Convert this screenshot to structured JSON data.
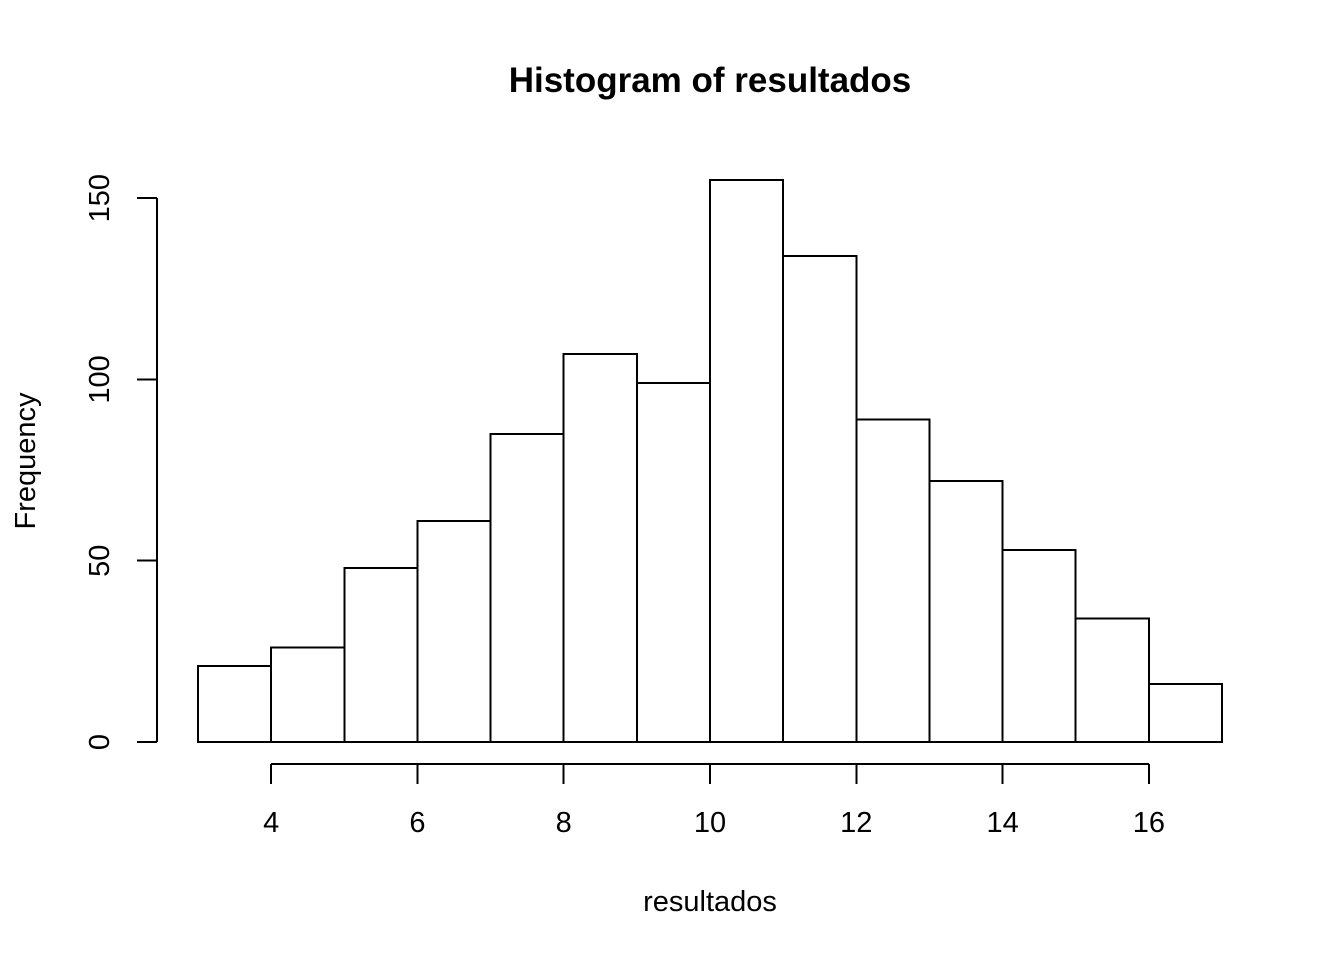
{
  "chart_data": {
    "type": "bar",
    "subtype": "histogram",
    "title": "Histogram of resultados",
    "xlabel": "resultados",
    "ylabel": "Frequency",
    "bins": [
      {
        "start": 3,
        "end": 4,
        "count": 21
      },
      {
        "start": 4,
        "end": 5,
        "count": 26
      },
      {
        "start": 5,
        "end": 6,
        "count": 48
      },
      {
        "start": 6,
        "end": 7,
        "count": 61
      },
      {
        "start": 7,
        "end": 8,
        "count": 85
      },
      {
        "start": 8,
        "end": 9,
        "count": 107
      },
      {
        "start": 9,
        "end": 10,
        "count": 99
      },
      {
        "start": 10,
        "end": 11,
        "count": 155
      },
      {
        "start": 11,
        "end": 12,
        "count": 134
      },
      {
        "start": 12,
        "end": 13,
        "count": 89
      },
      {
        "start": 13,
        "end": 14,
        "count": 72
      },
      {
        "start": 14,
        "end": 15,
        "count": 53
      },
      {
        "start": 15,
        "end": 16,
        "count": 34
      },
      {
        "start": 16,
        "end": 17,
        "count": 16
      }
    ],
    "xlim": [
      3,
      17
    ],
    "ylim": [
      0,
      155
    ],
    "x_ticks": [
      4,
      6,
      8,
      10,
      12,
      14,
      16
    ],
    "y_ticks": [
      0,
      50,
      100,
      150
    ],
    "grid": false,
    "legend": "none",
    "bar_fill": "#ffffff",
    "bar_stroke": "#000000"
  }
}
